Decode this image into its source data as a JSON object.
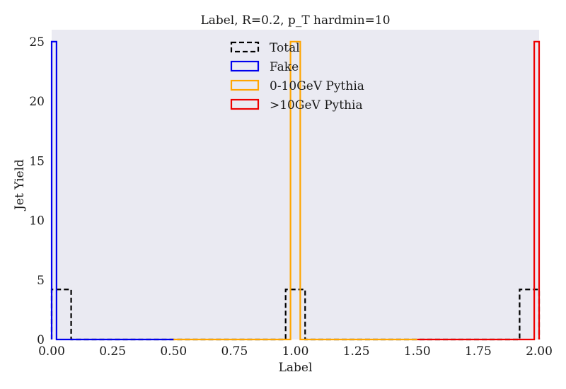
{
  "chart_data": {
    "type": "histogram-step",
    "title": "Label, R=0.2, p_T hardmin=10",
    "xlabel": "Label",
    "ylabel": "Jet Yield",
    "xlim": [
      0.0,
      2.0
    ],
    "ylim": [
      0,
      26
    ],
    "xticks": [
      "0.00",
      "0.25",
      "0.50",
      "0.75",
      "1.00",
      "1.25",
      "1.50",
      "1.75",
      "2.00"
    ],
    "yticks": [
      "0",
      "5",
      "10",
      "15",
      "20",
      "25"
    ],
    "grid": false,
    "background_color": "#eaeaf2",
    "legend_placement": "top-center",
    "series": [
      {
        "name": "Total",
        "color": "#000000",
        "style": "dashed",
        "bin_edges": [
          0.0,
          0.08,
          0.12,
          0.92,
          0.96,
          1.04,
          1.08,
          1.88,
          1.92,
          2.0
        ],
        "counts": [
          4.2,
          0,
          0,
          0,
          4.2,
          0,
          0,
          0,
          4.2
        ]
      },
      {
        "name": "Fake",
        "color": "#0000ee",
        "style": "solid",
        "bin_edges": [
          0.0,
          0.02,
          0.5
        ],
        "counts": [
          25,
          0
        ]
      },
      {
        "name": "0-10GeV Pythia",
        "color": "#ffa500",
        "style": "solid",
        "bin_edges": [
          0.5,
          0.98,
          1.02,
          1.5
        ],
        "counts": [
          0,
          25,
          0
        ]
      },
      {
        "name": ">10GeV Pythia",
        "color": "#ee0000",
        "style": "solid",
        "bin_edges": [
          1.5,
          1.98,
          2.0
        ],
        "counts": [
          0,
          25
        ]
      }
    ]
  }
}
